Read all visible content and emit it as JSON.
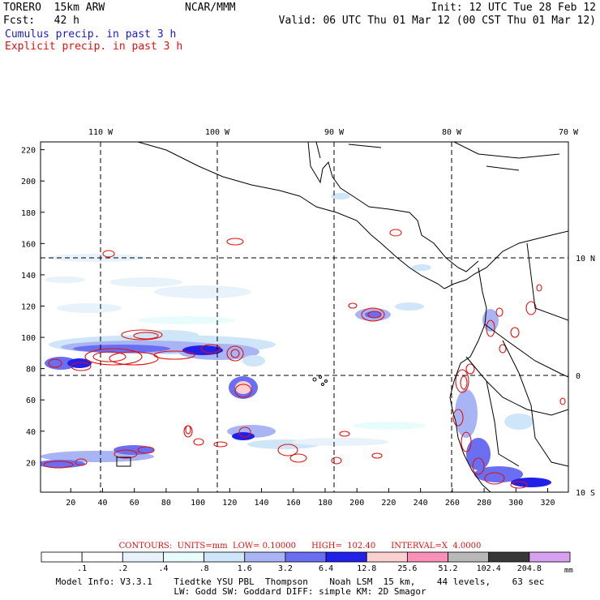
{
  "header": {
    "model": "TORERO  15km ARW",
    "org": "NCAR/MMM",
    "init": "Init: 12 UTC Tue 28 Feb 12",
    "fcst": "Fcst:   42 h",
    "valid": "Valid: 06 UTC Thu 01 Mar 12 (00 CST Thu 01 Mar 12)",
    "cumulus": "Cumulus precip. in past 3 h",
    "explicit": "Explicit precip. in past 3 h"
  },
  "colors": {
    "cumulus": "#1a1acc",
    "explicit": "#e01010",
    "coast": "#000000",
    "grid": "#000000"
  },
  "map": {
    "lon_labels": [
      "110 W",
      "100 W",
      "90 W",
      "80 W",
      "70 W"
    ],
    "lat_labels": [
      "10 N",
      "0",
      "10 S"
    ],
    "x_ticks": [
      "20",
      "40",
      "60",
      "80",
      "100",
      "120",
      "140",
      "160",
      "180",
      "200",
      "220",
      "240",
      "260",
      "280",
      "300",
      "320"
    ],
    "y_ticks": [
      "20",
      "40",
      "60",
      "80",
      "100",
      "120",
      "140",
      "160",
      "180",
      "200",
      "220"
    ],
    "x_range": [
      1,
      333
    ],
    "y_range": [
      1,
      225
    ]
  },
  "legend": {
    "contours": "CONTOURS:  UNITS=mm  LOW= 0.10000      HIGH=  102.40      INTERVAL=X  4.0000",
    "unit": "mm",
    "labels": [
      ".1",
      ".2",
      ".4",
      ".8",
      "1.6",
      "3.2",
      "6.4",
      "12.8",
      "25.6",
      "51.2",
      "102.4",
      "204.8"
    ],
    "colors": [
      "#ffffff",
      "#ffffff",
      "#e8f2fb",
      "#e8fcfc",
      "#cfe6f8",
      "#a8b4f4",
      "#6a6ef0",
      "#2020e8",
      "#fcd0d0",
      "#f890b8",
      "#b8b8b8",
      "#383838",
      "#d8a0f0"
    ]
  },
  "footer": {
    "line1": "Model Info: V3.3.1    Tiedtke YSU PBL  Thompson    Noah LSM  15 km,    44 levels,    63 sec",
    "line2": "LW: Godd SW: Goddard DIFF: simple KM: 2D Smagor"
  }
}
